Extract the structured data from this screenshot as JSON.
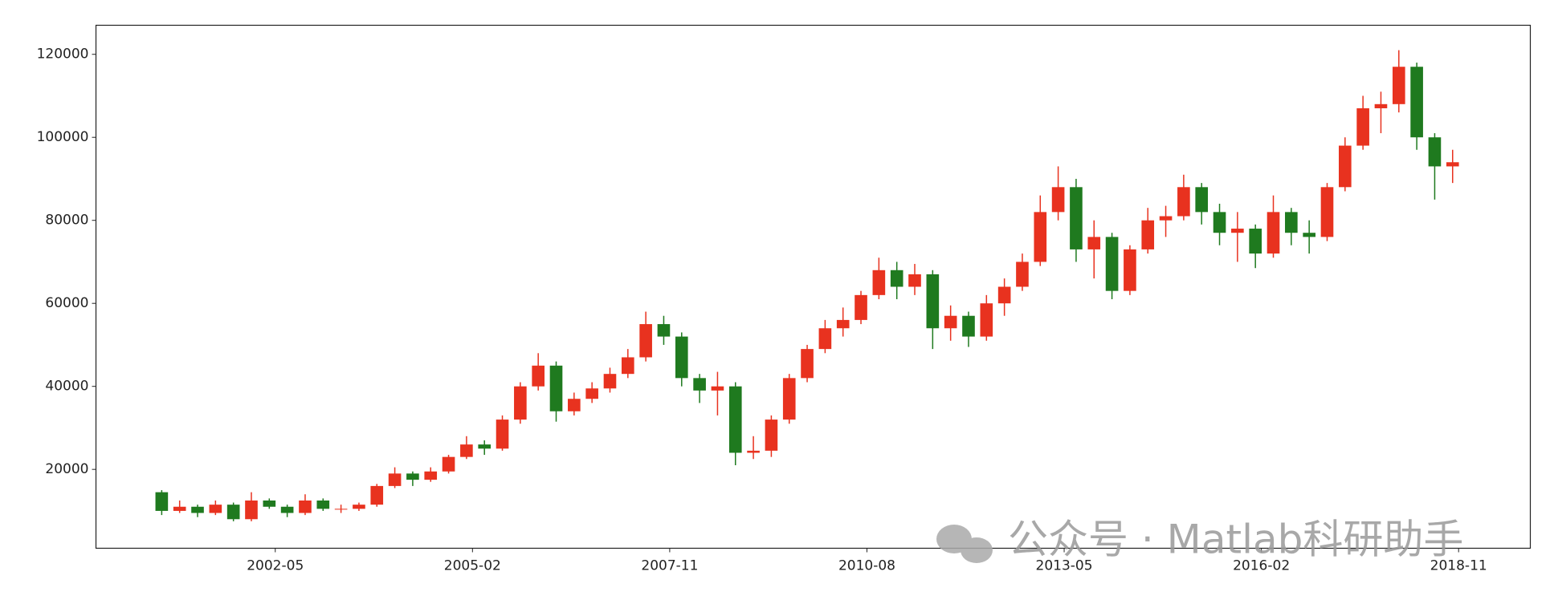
{
  "chart_data": {
    "type": "candlestick",
    "watermark": "公众号 · Matlab科研助手",
    "up_color": "#e8321f",
    "down_color": "#1f7a1f",
    "xlim": [
      "1999-11",
      "2019-11"
    ],
    "xticks": [
      "2002-05",
      "2005-02",
      "2007-11",
      "2010-08",
      "2013-05",
      "2016-02",
      "2018-11"
    ],
    "ylim": [
      1000,
      127000
    ],
    "yticks": [
      20000,
      40000,
      60000,
      80000,
      100000,
      120000
    ],
    "x": [
      "2000-10",
      "2001-01",
      "2001-04",
      "2001-07",
      "2001-10",
      "2002-01",
      "2002-04",
      "2002-07",
      "2002-10",
      "2003-01",
      "2003-04",
      "2003-07",
      "2003-10",
      "2004-01",
      "2004-04",
      "2004-07",
      "2004-10",
      "2005-01",
      "2005-04",
      "2005-07",
      "2005-10",
      "2006-01",
      "2006-04",
      "2006-07",
      "2006-10",
      "2007-01",
      "2007-04",
      "2007-07",
      "2007-10",
      "2008-01",
      "2008-04",
      "2008-07",
      "2008-10",
      "2009-01",
      "2009-04",
      "2009-07",
      "2009-10",
      "2010-01",
      "2010-04",
      "2010-07",
      "2010-10",
      "2011-01",
      "2011-04",
      "2011-07",
      "2011-10",
      "2012-01",
      "2012-04",
      "2012-07",
      "2012-10",
      "2013-01",
      "2013-04",
      "2013-07",
      "2013-10",
      "2014-01",
      "2014-04",
      "2014-07",
      "2014-10",
      "2015-01",
      "2015-04",
      "2015-07",
      "2015-10",
      "2016-01",
      "2016-04",
      "2016-07",
      "2016-10",
      "2017-01",
      "2017-04",
      "2017-07",
      "2017-10",
      "2018-01",
      "2018-04",
      "2018-07",
      "2018-10"
    ],
    "open": [
      14500,
      10000,
      11000,
      9500,
      11500,
      8000,
      12500,
      11000,
      9500,
      12500,
      10500,
      10500,
      11500,
      16000,
      19000,
      17500,
      19500,
      23000,
      26000,
      25000,
      32000,
      40000,
      45000,
      34000,
      37000,
      39500,
      43000,
      47000,
      55000,
      52000,
      42000,
      39000,
      40000,
      24000,
      24500,
      32000,
      42000,
      49000,
      54000,
      56000,
      62000,
      68000,
      64000,
      67000,
      54000,
      57000,
      52000,
      60000,
      64000,
      70000,
      82000,
      88000,
      73000,
      76000,
      63000,
      73000,
      80000,
      81000,
      88000,
      82000,
      77000,
      78000,
      72000,
      82000,
      77000,
      76000,
      88000,
      98000,
      107000,
      108000,
      117000,
      100000,
      93000
    ],
    "high": [
      15000,
      12500,
      11500,
      12500,
      12000,
      14500,
      13000,
      11500,
      14000,
      13000,
      11500,
      12000,
      16500,
      20500,
      19500,
      20500,
      23500,
      28000,
      27000,
      33000,
      41000,
      48000,
      46000,
      38500,
      41000,
      44500,
      49000,
      58000,
      57000,
      53000,
      43000,
      43500,
      41000,
      28000,
      33000,
      43000,
      50000,
      56000,
      59000,
      63000,
      71000,
      70000,
      69500,
      68000,
      59500,
      58000,
      62000,
      66000,
      72000,
      86000,
      93000,
      90000,
      80000,
      77000,
      74000,
      83000,
      83500,
      91000,
      89000,
      84000,
      82000,
      79000,
      86000,
      83000,
      80000,
      89000,
      100000,
      110000,
      111000,
      121000,
      118000,
      101000,
      97000
    ],
    "low": [
      9000,
      9500,
      8500,
      9000,
      7500,
      7500,
      10500,
      8500,
      9000,
      10000,
      9500,
      10000,
      11000,
      15500,
      16000,
      17000,
      19000,
      22500,
      23500,
      24500,
      31000,
      39000,
      31500,
      33000,
      36000,
      38500,
      42000,
      46000,
      50000,
      40000,
      36000,
      33000,
      21000,
      22500,
      23000,
      31000,
      41000,
      48000,
      52000,
      55000,
      61000,
      61000,
      62000,
      49000,
      51000,
      49500,
      51000,
      57000,
      63000,
      69000,
      80000,
      70000,
      66000,
      61000,
      62000,
      72000,
      76000,
      80000,
      79000,
      74000,
      70000,
      68500,
      71000,
      74000,
      72000,
      75000,
      87000,
      97000,
      101000,
      106000,
      97000,
      85000,
      89000
    ],
    "close": [
      10000,
      11000,
      9500,
      11500,
      8000,
      12500,
      11000,
      9500,
      12500,
      10500,
      10500,
      11500,
      16000,
      19000,
      17500,
      19500,
      23000,
      26000,
      25000,
      32000,
      40000,
      45000,
      34000,
      37000,
      39500,
      43000,
      47000,
      55000,
      52000,
      42000,
      39000,
      40000,
      24000,
      24500,
      32000,
      42000,
      49000,
      54000,
      56000,
      62000,
      68000,
      64000,
      67000,
      54000,
      57000,
      52000,
      60000,
      64000,
      70000,
      82000,
      88000,
      73000,
      76000,
      63000,
      73000,
      80000,
      81000,
      88000,
      82000,
      77000,
      78000,
      72000,
      82000,
      77000,
      76000,
      88000,
      98000,
      107000,
      108000,
      117000,
      100000,
      93000,
      94000
    ]
  }
}
